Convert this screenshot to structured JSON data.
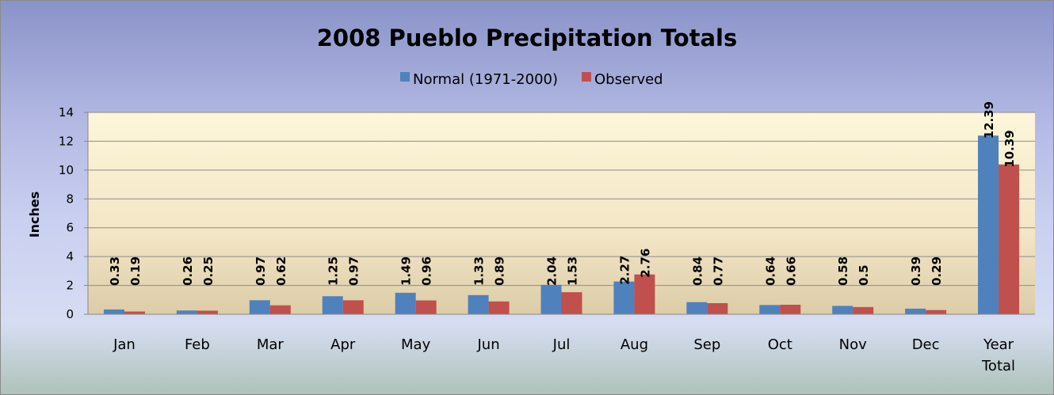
{
  "chart_data": {
    "type": "bar",
    "title": "2008 Pueblo Precipitation Totals",
    "ylabel": "Inches",
    "xlabel": "",
    "ylim": [
      0,
      14
    ],
    "yticks": [
      0,
      2,
      4,
      6,
      8,
      10,
      12,
      14
    ],
    "grid": true,
    "legend_position": "top",
    "categories": [
      "Jan",
      "Feb",
      "Mar",
      "Apr",
      "May",
      "Jun",
      "Jul",
      "Aug",
      "Sep",
      "Oct",
      "Nov",
      "Dec",
      "Year Total"
    ],
    "series": [
      {
        "name": "Normal (1971-2000)",
        "color": "#4f81bd",
        "values": [
          0.33,
          0.26,
          0.97,
          1.25,
          1.49,
          1.33,
          2.04,
          2.27,
          0.84,
          0.64,
          0.58,
          0.39,
          12.39
        ]
      },
      {
        "name": "Observed",
        "color": "#c0504d",
        "values": [
          0.19,
          0.25,
          0.62,
          0.97,
          0.96,
          0.89,
          1.53,
          2.76,
          0.77,
          0.66,
          0.5,
          0.29,
          10.39
        ]
      }
    ],
    "data_labels": [
      [
        "0.33",
        "0.26",
        "0.97",
        "1.25",
        "1.49",
        "1.33",
        "2.04",
        "2.27",
        "0.84",
        "0.64",
        "0.58",
        "0.39",
        "12.39"
      ],
      [
        "0.19",
        "0.25",
        "0.62",
        "0.97",
        "0.96",
        "0.89",
        "1.53",
        "2.76",
        "0.77",
        "0.66",
        "0.5",
        "0.29",
        "10.39"
      ]
    ]
  }
}
